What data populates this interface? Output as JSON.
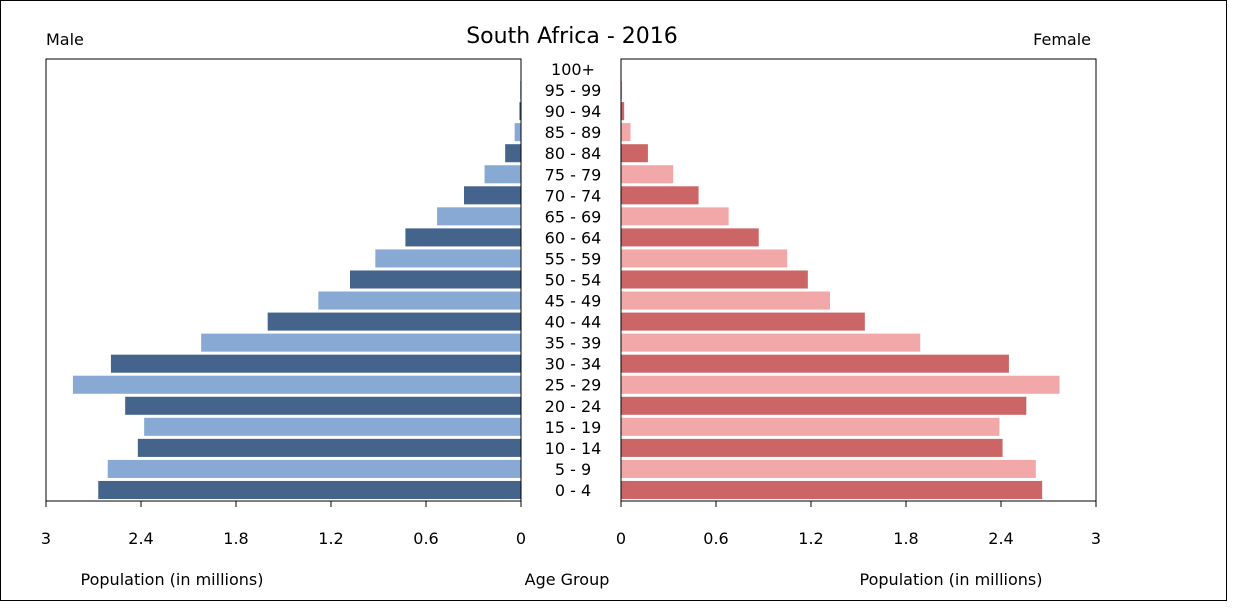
{
  "chart_data": {
    "type": "bar",
    "title": "South Africa - 2016",
    "left_label": "Male",
    "right_label": "Female",
    "xlabel_left": "Population (in millions)",
    "xlabel_center": "Age Group",
    "xlabel_right": "Population (in millions)",
    "xlim": [
      0,
      3
    ],
    "xticks": [
      "3",
      "2.4",
      "1.8",
      "1.2",
      "0.6",
      "0"
    ],
    "xticks_right": [
      "0",
      "0.6",
      "1.2",
      "1.8",
      "2.4",
      "3"
    ],
    "categories": [
      "0 - 4",
      "5 - 9",
      "10 - 14",
      "15 - 19",
      "20 - 24",
      "25 - 29",
      "30 - 34",
      "35 - 39",
      "40 - 44",
      "45 - 49",
      "50 - 54",
      "55 - 59",
      "60 - 64",
      "65 - 69",
      "70 - 74",
      "75 - 79",
      "80 - 84",
      "85 - 89",
      "90 - 94",
      "95 - 99",
      "100+"
    ],
    "series": [
      {
        "name": "Male",
        "values": [
          2.67,
          2.61,
          2.42,
          2.38,
          2.5,
          2.83,
          2.59,
          2.02,
          1.6,
          1.28,
          1.08,
          0.92,
          0.73,
          0.53,
          0.36,
          0.23,
          0.1,
          0.04,
          0.01,
          0.005,
          0.002
        ]
      },
      {
        "name": "Female",
        "values": [
          2.66,
          2.62,
          2.41,
          2.39,
          2.56,
          2.77,
          2.45,
          1.89,
          1.54,
          1.32,
          1.18,
          1.05,
          0.87,
          0.68,
          0.49,
          0.33,
          0.17,
          0.06,
          0.02,
          0.007,
          0.003
        ]
      }
    ],
    "colors": {
      "male_dark": "#44648c",
      "male_light": "#87a9d3",
      "female_dark": "#cc6666",
      "female_light": "#f2a8a8"
    }
  }
}
